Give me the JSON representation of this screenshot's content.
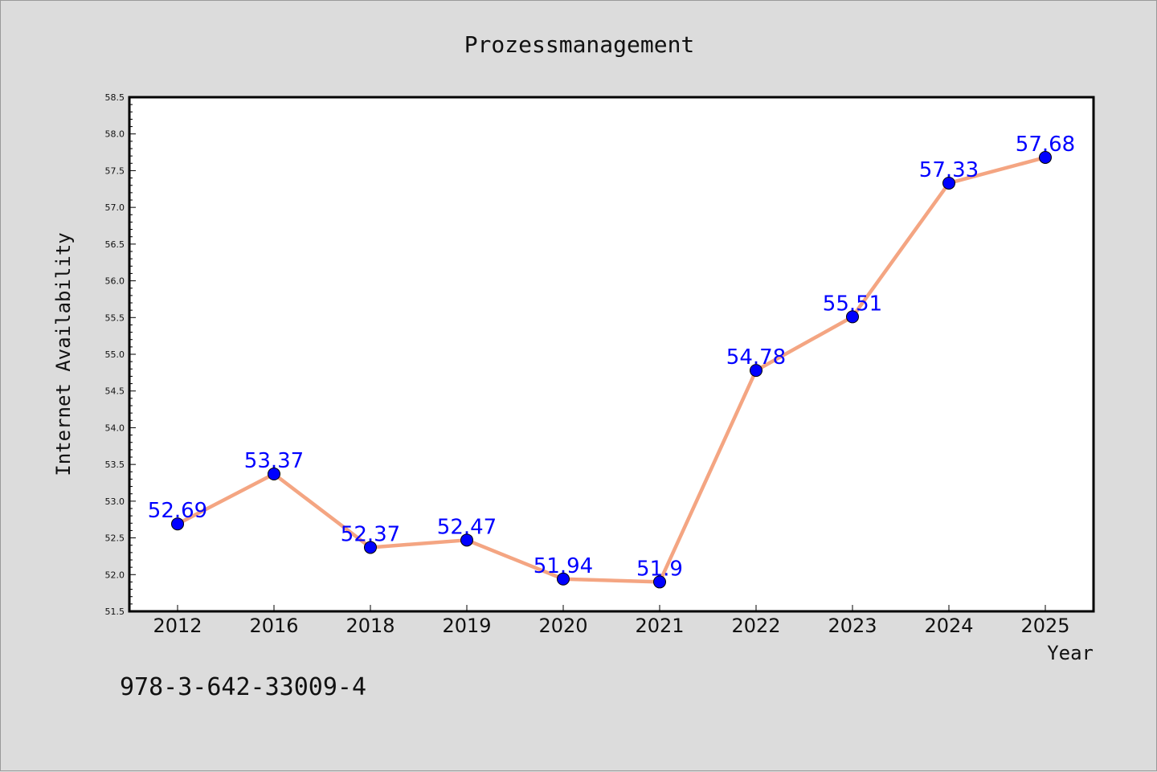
{
  "chart_data": {
    "type": "line",
    "title": "Prozessmanagement",
    "xlabel": "Year",
    "ylabel": "Internet Availability",
    "categories": [
      "2012",
      "2016",
      "2018",
      "2019",
      "2020",
      "2021",
      "2022",
      "2023",
      "2024",
      "2025"
    ],
    "series": [
      {
        "values": [
          52.69,
          53.37,
          52.37,
          52.47,
          51.94,
          51.9,
          54.78,
          55.51,
          57.33,
          57.68
        ],
        "labels": [
          "52.69",
          "53.37",
          "52.37",
          "52.47",
          "51.94",
          "51.9",
          "54.78",
          "55.51",
          "57.33",
          "57.68"
        ],
        "line_color": "#f4a582",
        "marker_color": "#0000ff",
        "label_color": "#0000ff"
      }
    ],
    "ylim": [
      51.5,
      58.5
    ],
    "yticks": [
      "51.5",
      "52.0",
      "52.5",
      "53.0",
      "53.5",
      "54.0",
      "54.5",
      "55.0",
      "55.5",
      "56.0",
      "56.5",
      "57.0",
      "57.5",
      "58.0",
      "58.5"
    ],
    "grid": false,
    "legend": false
  },
  "footer": {
    "isbn": "978-3-642-33009-4"
  }
}
